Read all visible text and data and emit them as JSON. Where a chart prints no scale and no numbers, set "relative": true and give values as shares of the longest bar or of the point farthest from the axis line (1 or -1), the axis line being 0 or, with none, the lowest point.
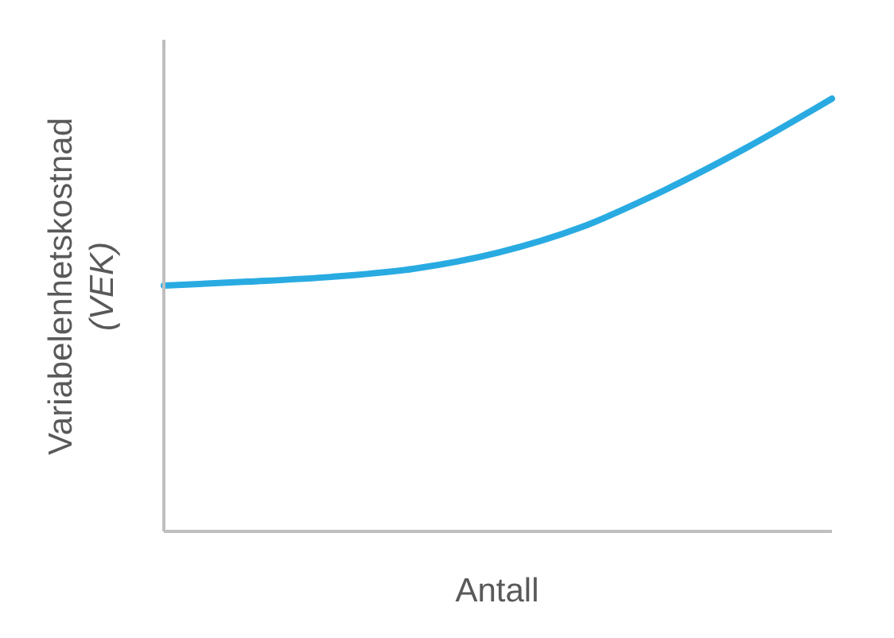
{
  "chart_data": {
    "type": "line",
    "relative": true,
    "xlabel": "Antall",
    "ylabel": "Variabelenhetskostnad (VEK)",
    "categories": [
      null,
      null,
      null,
      null,
      null,
      null,
      null,
      null,
      null
    ],
    "series": [
      {
        "color": "#29abe2",
        "values": [
          0.568,
          0.577,
          0.588,
          0.607,
          0.644,
          0.703,
          0.789,
          0.889,
          1
        ]
      }
    ],
    "grid": false,
    "legend": false,
    "marker": "none",
    "line_style": "solid"
  }
}
